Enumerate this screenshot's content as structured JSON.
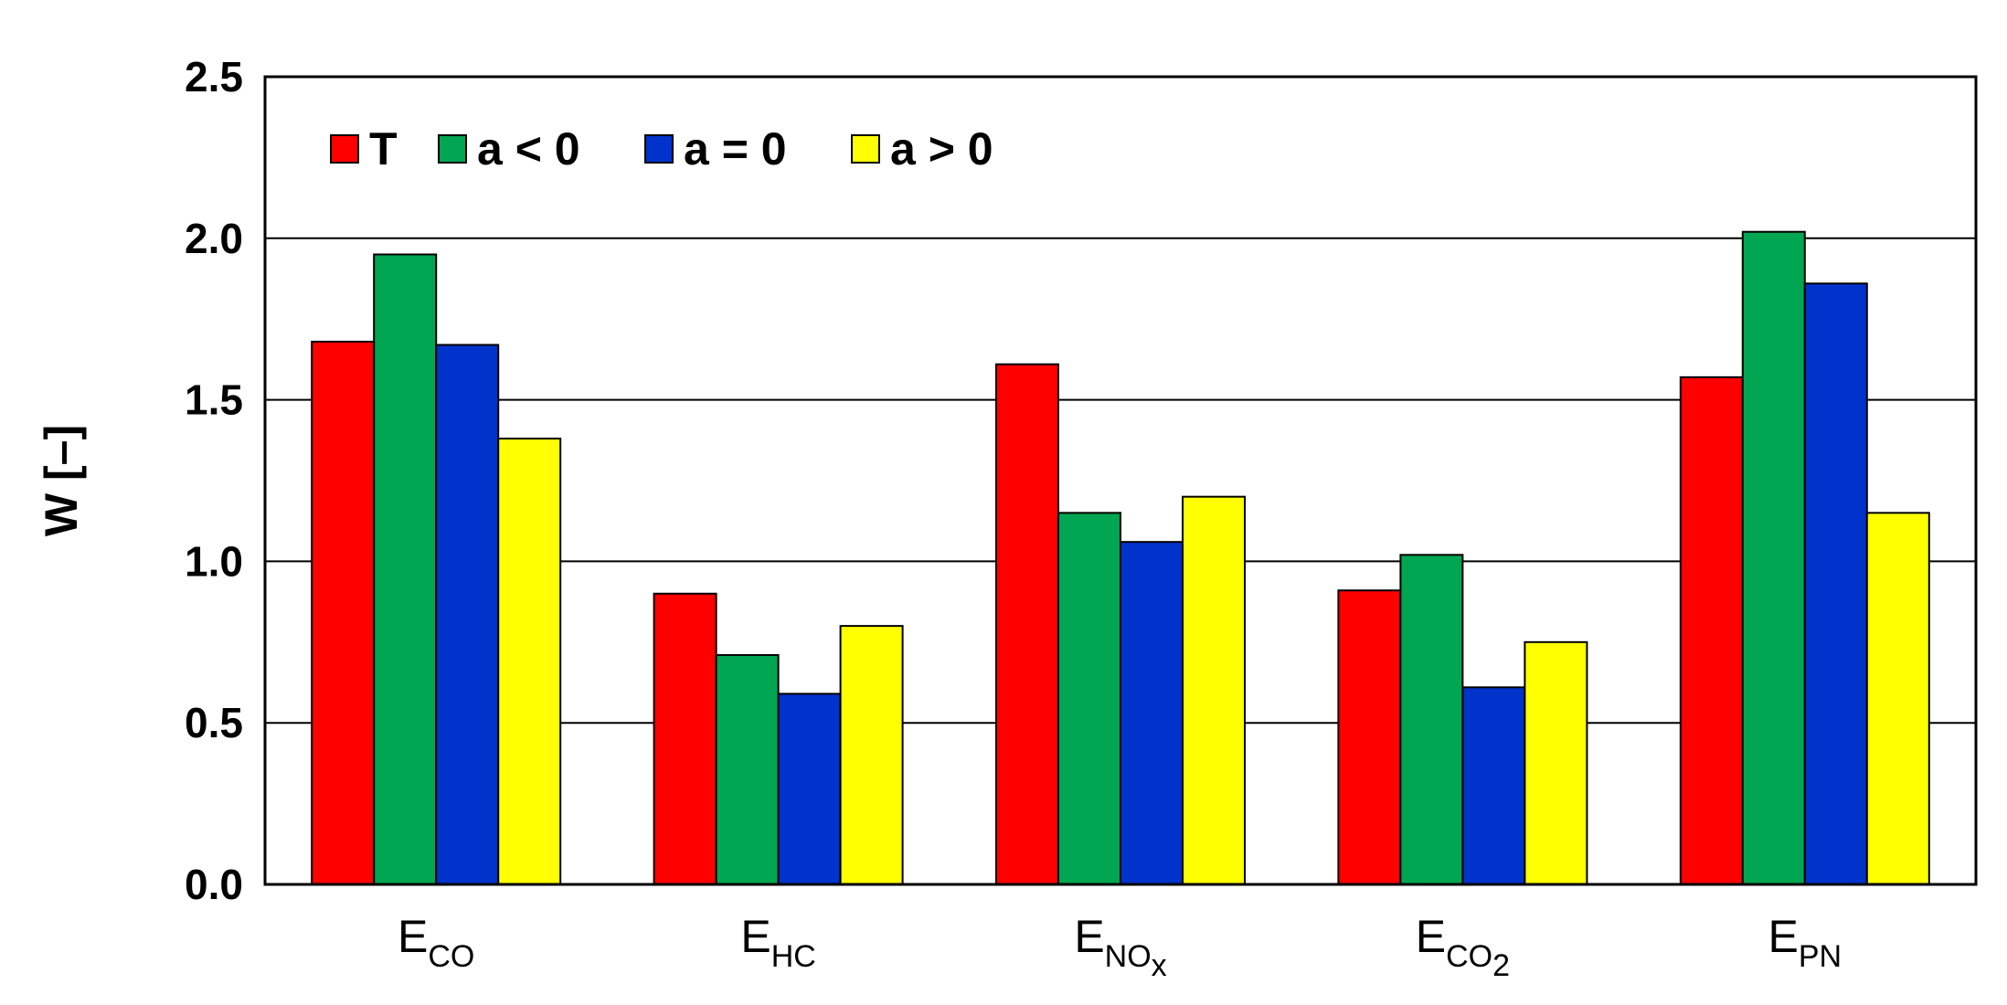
{
  "chart_data": {
    "type": "bar",
    "ylabel": "W [–]",
    "ylim": [
      0,
      2.5
    ],
    "yticks": [
      "0.0",
      "0.5",
      "1.0",
      "1.5",
      "2.0",
      "2.5"
    ],
    "grid": "horizontal",
    "legend_position": "top-left",
    "categories": [
      {
        "main": "E",
        "sub": "CO",
        "subsub": ""
      },
      {
        "main": "E",
        "sub": "HC",
        "subsub": ""
      },
      {
        "main": "E",
        "sub": "NO",
        "subsub": "x"
      },
      {
        "main": "E",
        "sub": "CO",
        "subsub": "2"
      },
      {
        "main": "E",
        "sub": "PN",
        "subsub": ""
      }
    ],
    "series": [
      {
        "name": "T",
        "color": "#ff0000",
        "values": [
          1.68,
          0.9,
          1.61,
          0.91,
          1.57
        ]
      },
      {
        "name": "a < 0",
        "color": "#00a651",
        "values": [
          1.95,
          0.71,
          1.15,
          1.02,
          2.02
        ]
      },
      {
        "name": "a = 0",
        "color": "#0033cc",
        "values": [
          1.67,
          0.59,
          1.06,
          0.61,
          1.86
        ]
      },
      {
        "name": "a > 0",
        "color": "#ffff00",
        "values": [
          1.38,
          0.8,
          1.2,
          0.75,
          1.15
        ]
      }
    ]
  }
}
